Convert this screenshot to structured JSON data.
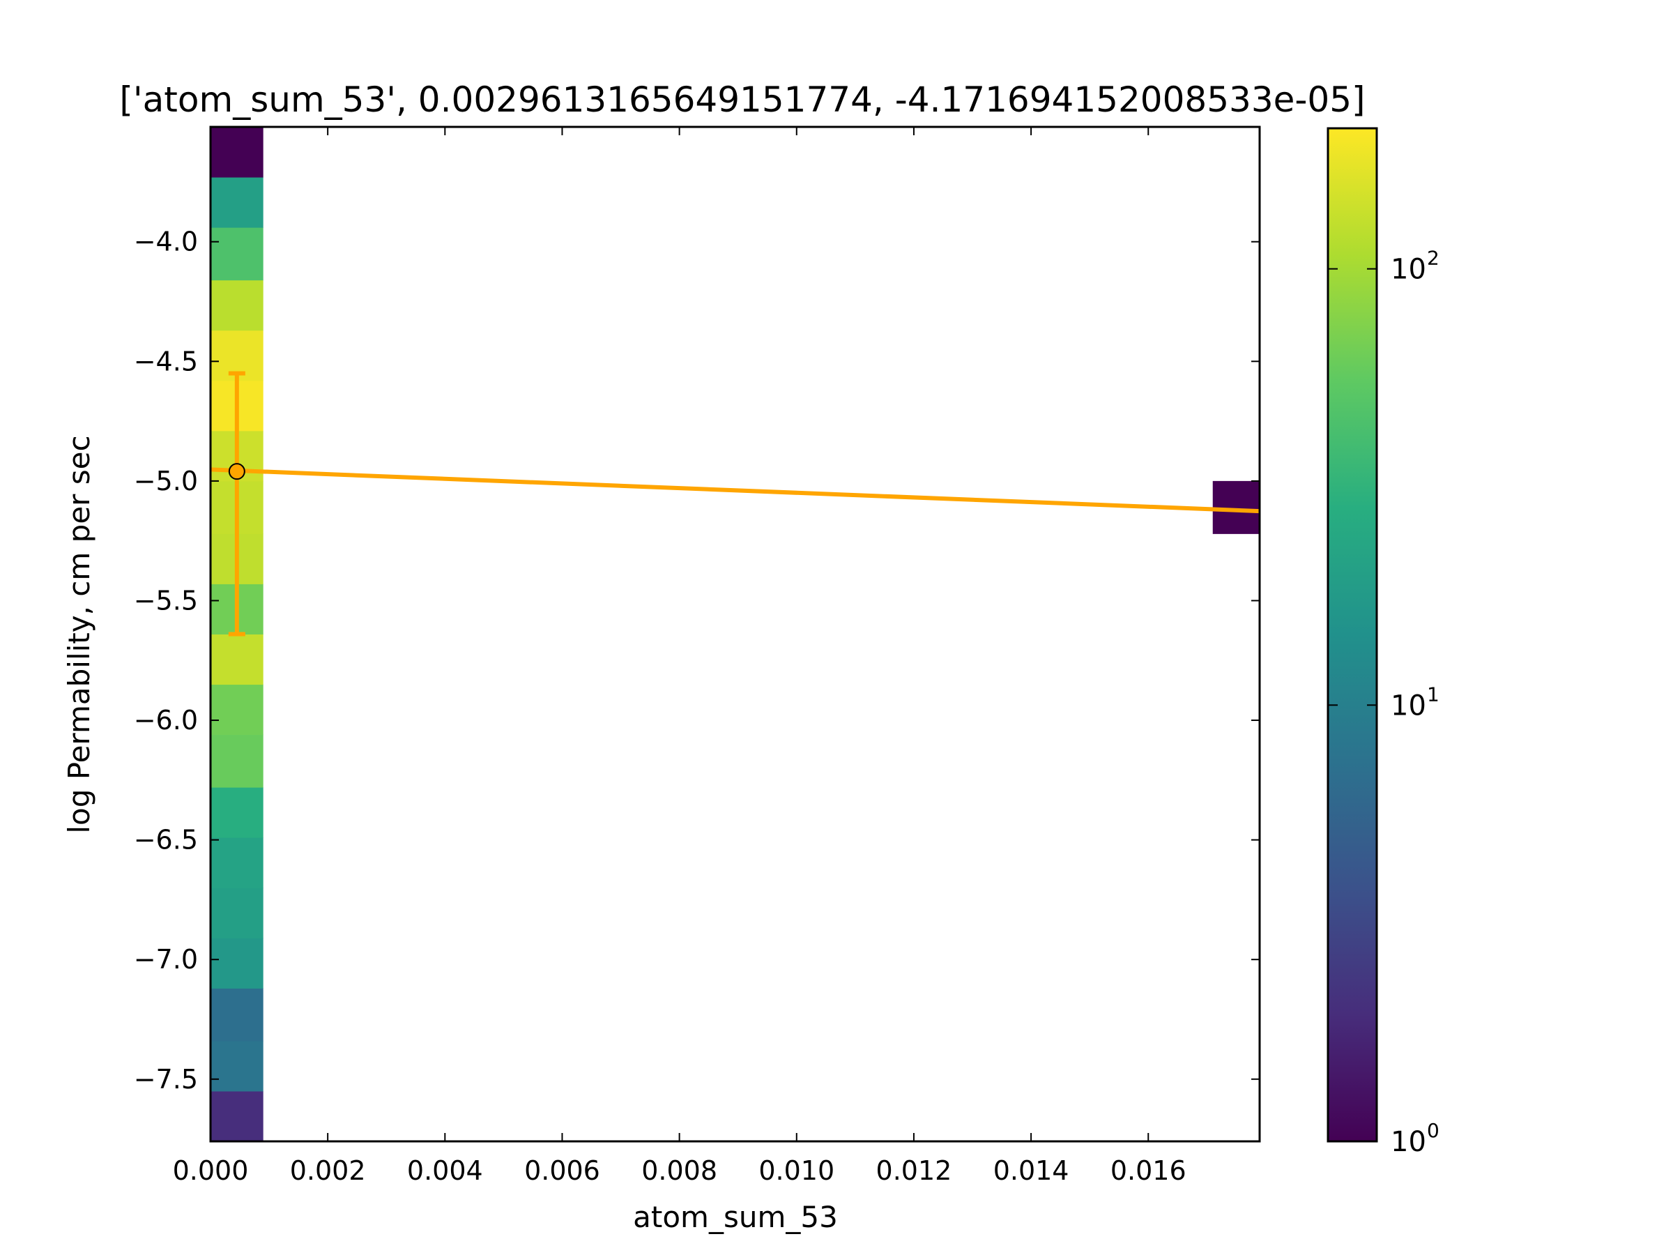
{
  "chart_data": {
    "type": "heatmap",
    "title": "['atom_sum_53', 0.0029613165649151774, -4.171694152008533e-05]",
    "xlabel": "atom_sum_53",
    "ylabel": "log Permability, cm per sec",
    "xlim": [
      0.0,
      0.0179
    ],
    "ylim": [
      -7.76,
      -3.52
    ],
    "x_ticks": [
      {
        "value": 0.0,
        "label": "0.000"
      },
      {
        "value": 0.002,
        "label": "0.002"
      },
      {
        "value": 0.004,
        "label": "0.004"
      },
      {
        "value": 0.006,
        "label": "0.006"
      },
      {
        "value": 0.008,
        "label": "0.008"
      },
      {
        "value": 0.01,
        "label": "0.010"
      },
      {
        "value": 0.012,
        "label": "0.012"
      },
      {
        "value": 0.014,
        "label": "0.014"
      },
      {
        "value": 0.016,
        "label": "0.016"
      }
    ],
    "y_ticks": [
      {
        "value": -4.0,
        "label": "−4.0"
      },
      {
        "value": -4.5,
        "label": "−4.5"
      },
      {
        "value": -5.0,
        "label": "−5.0"
      },
      {
        "value": -5.5,
        "label": "−5.5"
      },
      {
        "value": -6.0,
        "label": "−6.0"
      },
      {
        "value": -6.5,
        "label": "−6.5"
      },
      {
        "value": -7.0,
        "label": "−7.0"
      },
      {
        "value": -7.5,
        "label": "−7.5"
      }
    ],
    "heatmap_cells": [
      {
        "x0": 0.0,
        "x1": 0.0009,
        "y0": -7.76,
        "y1": -7.55,
        "count": 2
      },
      {
        "x0": 0.0,
        "x1": 0.0009,
        "y0": -7.55,
        "y1": -7.34,
        "count": 8
      },
      {
        "x0": 0.0,
        "x1": 0.0009,
        "y0": -7.34,
        "y1": -7.12,
        "count": 7
      },
      {
        "x0": 0.0,
        "x1": 0.0009,
        "y0": -7.12,
        "y1": -6.91,
        "count": 17
      },
      {
        "x0": 0.0,
        "x1": 0.0009,
        "y0": -6.91,
        "y1": -6.7,
        "count": 20
      },
      {
        "x0": 0.0,
        "x1": 0.0009,
        "y0": -6.7,
        "y1": -6.49,
        "count": 22
      },
      {
        "x0": 0.0,
        "x1": 0.0009,
        "y0": -6.49,
        "y1": -6.28,
        "count": 28
      },
      {
        "x0": 0.0,
        "x1": 0.0009,
        "y0": -6.28,
        "y1": -6.06,
        "count": 60
      },
      {
        "x0": 0.0,
        "x1": 0.0009,
        "y0": -6.06,
        "y1": -5.85,
        "count": 65
      },
      {
        "x0": 0.0,
        "x1": 0.0009,
        "y0": -5.85,
        "y1": -5.64,
        "count": 130
      },
      {
        "x0": 0.0,
        "x1": 0.0009,
        "y0": -5.64,
        "y1": -5.43,
        "count": 65
      },
      {
        "x0": 0.0,
        "x1": 0.0009,
        "y0": -5.43,
        "y1": -5.22,
        "count": 125
      },
      {
        "x0": 0.0,
        "x1": 0.0009,
        "y0": -5.22,
        "y1": -5.0,
        "count": 130
      },
      {
        "x0": 0.0,
        "x1": 0.0009,
        "y0": -5.0,
        "y1": -4.79,
        "count": 140
      },
      {
        "x0": 0.0,
        "x1": 0.0009,
        "y0": -4.79,
        "y1": -4.58,
        "count": 200
      },
      {
        "x0": 0.0,
        "x1": 0.0009,
        "y0": -4.58,
        "y1": -4.37,
        "count": 180
      },
      {
        "x0": 0.0,
        "x1": 0.0009,
        "y0": -4.37,
        "y1": -4.16,
        "count": 120
      },
      {
        "x0": 0.0,
        "x1": 0.0009,
        "y0": -4.16,
        "y1": -3.94,
        "count": 45
      },
      {
        "x0": 0.0,
        "x1": 0.0009,
        "y0": -3.94,
        "y1": -3.73,
        "count": 20
      },
      {
        "x0": 0.0,
        "x1": 0.0009,
        "y0": -3.73,
        "y1": -3.52,
        "count": 1
      },
      {
        "x0": 0.0171,
        "x1": 0.0179,
        "y0": -5.22,
        "y1": -5.0,
        "count": 1
      }
    ],
    "fit_line": {
      "x": [
        0.0,
        0.0179
      ],
      "y": [
        -4.952,
        -5.126
      ],
      "color": "#ffa500"
    },
    "errorbar": {
      "x": 0.00045,
      "y": -4.96,
      "yerr_low": -5.64,
      "yerr_high": -4.55,
      "color": "#ffa500"
    },
    "colorbar": {
      "scale": "log",
      "range": [
        1,
        210
      ],
      "colormap": "viridis",
      "ticks": [
        {
          "value": 1,
          "base": "10",
          "exp": "0"
        },
        {
          "value": 10,
          "base": "10",
          "exp": "1"
        },
        {
          "value": 100,
          "base": "10",
          "exp": "2"
        }
      ]
    },
    "grid": false
  }
}
